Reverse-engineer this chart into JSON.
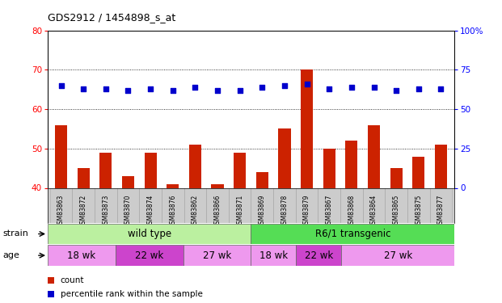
{
  "title": "GDS2912 / 1454898_s_at",
  "samples": [
    "GSM83863",
    "GSM83872",
    "GSM83873",
    "GSM83870",
    "GSM83874",
    "GSM83876",
    "GSM83862",
    "GSM83866",
    "GSM83871",
    "GSM83869",
    "GSM83878",
    "GSM83879",
    "GSM83867",
    "GSM83868",
    "GSM83864",
    "GSM83865",
    "GSM83875",
    "GSM83877"
  ],
  "counts": [
    56,
    45,
    49,
    43,
    49,
    41,
    51,
    41,
    49,
    44,
    55,
    70,
    50,
    52,
    56,
    45,
    48,
    51
  ],
  "percentiles": [
    65,
    63,
    63,
    62,
    63,
    62,
    64,
    62,
    62,
    64,
    65,
    66,
    63,
    64,
    64,
    62,
    63,
    63
  ],
  "left_ylim": [
    40,
    80
  ],
  "left_yticks": [
    40,
    50,
    60,
    70,
    80
  ],
  "right_ylim": [
    0,
    100
  ],
  "right_yticks": [
    0,
    25,
    50,
    75,
    100
  ],
  "right_yticklabels": [
    "0",
    "25",
    "50",
    "75",
    "100%"
  ],
  "bar_color": "#cc2200",
  "dot_color": "#0000cc",
  "grid_lines": [
    50,
    60,
    70
  ],
  "strain_groups": [
    {
      "label": "wild type",
      "start": 0,
      "end": 9,
      "color": "#bbf0a0"
    },
    {
      "label": "R6/1 transgenic",
      "start": 9,
      "end": 18,
      "color": "#55dd55"
    }
  ],
  "age_groups": [
    {
      "label": "18 wk",
      "start": 0,
      "end": 3,
      "color": "#ee99ee"
    },
    {
      "label": "22 wk",
      "start": 3,
      "end": 6,
      "color": "#cc44cc"
    },
    {
      "label": "27 wk",
      "start": 6,
      "end": 9,
      "color": "#ee99ee"
    },
    {
      "label": "18 wk",
      "start": 9,
      "end": 11,
      "color": "#ee99ee"
    },
    {
      "label": "22 wk",
      "start": 11,
      "end": 13,
      "color": "#cc44cc"
    },
    {
      "label": "27 wk",
      "start": 13,
      "end": 18,
      "color": "#ee99ee"
    }
  ],
  "legend_items": [
    {
      "label": "count",
      "color": "#cc2200"
    },
    {
      "label": "percentile rank within the sample",
      "color": "#0000cc"
    }
  ],
  "xtick_bg": "#cccccc",
  "plot_bg": "#ffffff"
}
